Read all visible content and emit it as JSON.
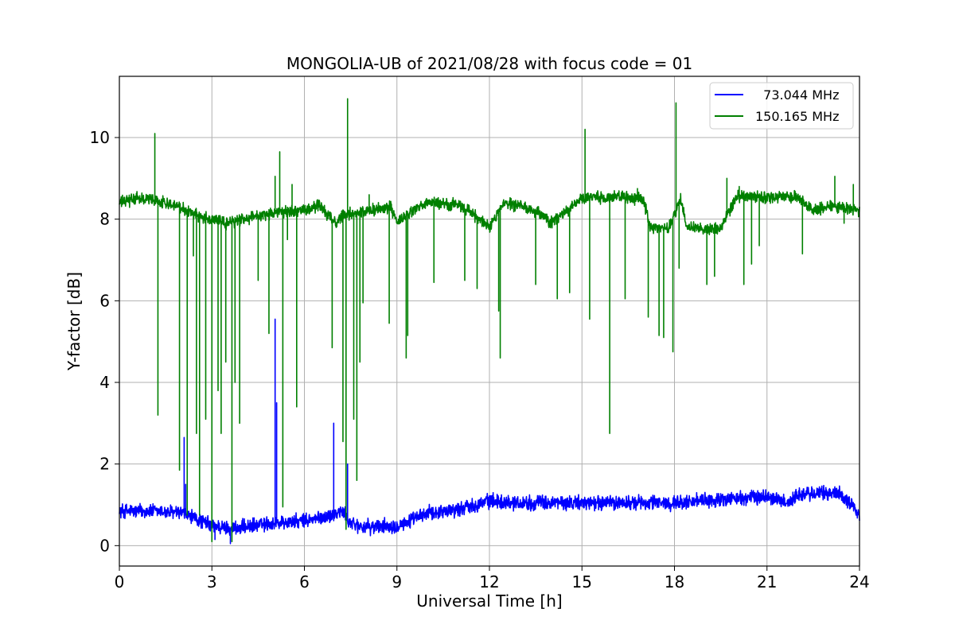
{
  "chart_data": {
    "type": "line",
    "title": "MONGOLIA-UB of 2021/08/28 with focus code = 01",
    "xlabel": "Universal Time [h]",
    "ylabel": "Y-factor [dB]",
    "xlim": [
      0,
      24
    ],
    "ylim": [
      -0.5,
      11.5
    ],
    "xticks": [
      0,
      3,
      6,
      9,
      12,
      15,
      18,
      21,
      24
    ],
    "yticks": [
      0,
      2,
      4,
      6,
      8,
      10
    ],
    "grid": true,
    "legend_position": "top-right",
    "series": [
      {
        "name": "  73.044 MHz",
        "color": "#0000ff",
        "baseline": [
          [
            0,
            0.85
          ],
          [
            1,
            0.85
          ],
          [
            2,
            0.8
          ],
          [
            2.5,
            0.65
          ],
          [
            3,
            0.5
          ],
          [
            3.5,
            0.42
          ],
          [
            4,
            0.45
          ],
          [
            5,
            0.55
          ],
          [
            6,
            0.6
          ],
          [
            6.8,
            0.72
          ],
          [
            7.2,
            0.85
          ],
          [
            7.5,
            0.55
          ],
          [
            8,
            0.45
          ],
          [
            9,
            0.5
          ],
          [
            9.5,
            0.62
          ],
          [
            10,
            0.8
          ],
          [
            11,
            0.9
          ],
          [
            12,
            1.1
          ],
          [
            13,
            1.05
          ],
          [
            15,
            1.05
          ],
          [
            18,
            1.05
          ],
          [
            21,
            1.2
          ],
          [
            21.7,
            1.05
          ],
          [
            22,
            1.25
          ],
          [
            23.3,
            1.3
          ],
          [
            23.8,
            1.0
          ],
          [
            24,
            0.7
          ]
        ],
        "noise": 0.15,
        "spikes": [
          [
            2.1,
            2.65
          ],
          [
            2.15,
            1.5
          ],
          [
            5.05,
            5.55
          ],
          [
            5.1,
            3.5
          ],
          [
            6.95,
            3.0
          ],
          [
            7.4,
            2.0
          ],
          [
            3.6,
            0.05
          ],
          [
            3.1,
            0.15
          ]
        ]
      },
      {
        "name": "150.165 MHz",
        "color": "#008000",
        "baseline": [
          [
            0,
            8.4
          ],
          [
            0.5,
            8.5
          ],
          [
            1,
            8.5
          ],
          [
            1.5,
            8.4
          ],
          [
            2,
            8.3
          ],
          [
            2.5,
            8.1
          ],
          [
            3,
            8.0
          ],
          [
            3.5,
            7.9
          ],
          [
            4,
            8.0
          ],
          [
            4.5,
            8.1
          ],
          [
            5,
            8.15
          ],
          [
            5.5,
            8.2
          ],
          [
            6,
            8.2
          ],
          [
            6.5,
            8.35
          ],
          [
            7,
            7.9
          ],
          [
            7.3,
            8.1
          ],
          [
            7.6,
            8.15
          ],
          [
            8,
            8.2
          ],
          [
            8.8,
            8.3
          ],
          [
            9,
            7.9
          ],
          [
            9.5,
            8.2
          ],
          [
            10,
            8.4
          ],
          [
            11,
            8.35
          ],
          [
            11.5,
            8.1
          ],
          [
            12,
            7.8
          ],
          [
            12.5,
            8.4
          ],
          [
            13,
            8.3
          ],
          [
            13.5,
            8.2
          ],
          [
            14,
            7.9
          ],
          [
            15,
            8.5
          ],
          [
            16,
            8.55
          ],
          [
            17,
            8.5
          ],
          [
            17.2,
            7.8
          ],
          [
            17.8,
            7.75
          ],
          [
            18.2,
            8.5
          ],
          [
            18.4,
            7.8
          ],
          [
            19.5,
            7.75
          ],
          [
            20,
            8.55
          ],
          [
            21,
            8.55
          ],
          [
            22,
            8.55
          ],
          [
            22.5,
            8.2
          ],
          [
            23,
            8.35
          ],
          [
            23.8,
            8.25
          ],
          [
            24,
            8.2
          ]
        ],
        "noise": 0.12,
        "spikes": [
          [
            1.15,
            10.1
          ],
          [
            1.25,
            3.2
          ],
          [
            1.95,
            1.85
          ],
          [
            2.2,
            0.75
          ],
          [
            2.4,
            7.1
          ],
          [
            2.5,
            2.75
          ],
          [
            2.6,
            0.75
          ],
          [
            2.8,
            3.1
          ],
          [
            3.0,
            0.1
          ],
          [
            3.2,
            3.8
          ],
          [
            3.3,
            2.75
          ],
          [
            3.45,
            4.5
          ],
          [
            3.65,
            0.1
          ],
          [
            3.75,
            4.0
          ],
          [
            3.9,
            3.0
          ],
          [
            4.5,
            6.5
          ],
          [
            4.85,
            5.2
          ],
          [
            5.05,
            9.05
          ],
          [
            5.2,
            9.65
          ],
          [
            5.3,
            0.95
          ],
          [
            5.45,
            7.5
          ],
          [
            5.6,
            8.85
          ],
          [
            5.75,
            3.4
          ],
          [
            6.9,
            4.85
          ],
          [
            7.25,
            2.55
          ],
          [
            7.35,
            0.4
          ],
          [
            7.4,
            10.95
          ],
          [
            7.6,
            3.1
          ],
          [
            7.7,
            1.6
          ],
          [
            7.8,
            4.5
          ],
          [
            7.9,
            5.95
          ],
          [
            8.1,
            8.6
          ],
          [
            8.75,
            5.45
          ],
          [
            9.3,
            4.6
          ],
          [
            9.35,
            5.15
          ],
          [
            10.2,
            6.45
          ],
          [
            11.2,
            6.5
          ],
          [
            11.6,
            6.3
          ],
          [
            12.3,
            5.75
          ],
          [
            12.35,
            4.6
          ],
          [
            13.5,
            6.4
          ],
          [
            14.2,
            6.05
          ],
          [
            14.6,
            6.2
          ],
          [
            15.1,
            10.2
          ],
          [
            15.25,
            5.55
          ],
          [
            15.9,
            2.75
          ],
          [
            16.4,
            6.05
          ],
          [
            16.8,
            8.75
          ],
          [
            17.15,
            5.6
          ],
          [
            17.5,
            5.15
          ],
          [
            17.65,
            5.1
          ],
          [
            17.95,
            4.75
          ],
          [
            18.05,
            10.85
          ],
          [
            18.15,
            6.8
          ],
          [
            19.05,
            6.4
          ],
          [
            19.3,
            6.6
          ],
          [
            19.7,
            9.0
          ],
          [
            20.1,
            8.8
          ],
          [
            20.25,
            6.4
          ],
          [
            20.5,
            6.9
          ],
          [
            20.75,
            7.35
          ],
          [
            22.15,
            7.15
          ],
          [
            23.2,
            9.05
          ],
          [
            23.5,
            7.9
          ],
          [
            23.8,
            8.85
          ]
        ]
      }
    ]
  }
}
